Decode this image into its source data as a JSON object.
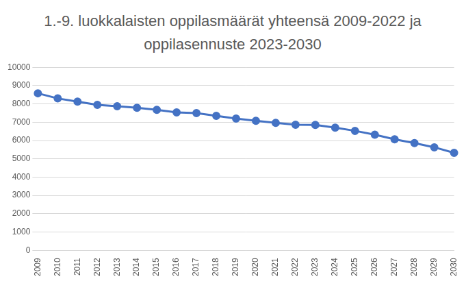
{
  "chart_data": {
    "type": "line",
    "title": "1.-9. luokkalaisten oppilasmäärät yhteensä 2009-2022 ja oppilasennuste 2023-2030",
    "categories": [
      "2009",
      "2010",
      "2011",
      "2012",
      "2013",
      "2014",
      "2015",
      "2016",
      "2017",
      "2018",
      "2019",
      "2020",
      "2021",
      "2022",
      "2023",
      "2024",
      "2025",
      "2026",
      "2027",
      "2028",
      "2029",
      "2030"
    ],
    "values": [
      8580,
      8300,
      8130,
      7950,
      7870,
      7790,
      7680,
      7540,
      7500,
      7350,
      7200,
      7080,
      6970,
      6860,
      6850,
      6700,
      6530,
      6320,
      6070,
      5860,
      5630,
      5330
    ],
    "color": "#4472c4",
    "marker": "circle",
    "ylim": [
      0,
      10000
    ],
    "yticks": [
      0,
      1000,
      2000,
      3000,
      4000,
      5000,
      6000,
      7000,
      8000,
      9000,
      10000
    ],
    "grid": true
  }
}
